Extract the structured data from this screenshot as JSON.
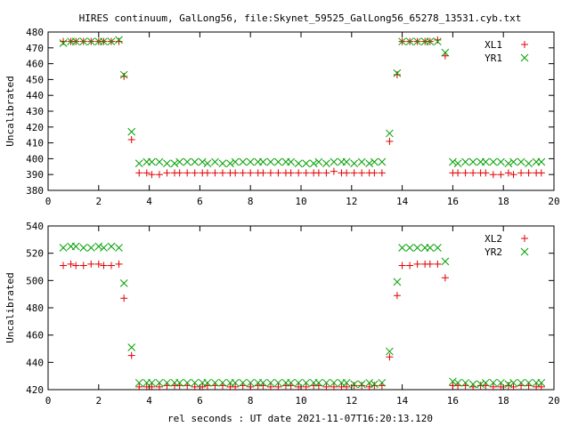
{
  "title": "HIRES continuum, GalLong56, file:Skynet_59525_GalLong56_65278_13531.cyb.txt",
  "xlabel": "rel seconds : UT date 2021-11-07T16:20:13.120",
  "colors": {
    "red": "#e00000",
    "green": "#00a000"
  },
  "chart_data": [
    {
      "type": "scatter",
      "ylabel": "Uncalibrated",
      "xlim": [
        0,
        20
      ],
      "ylim": [
        380,
        480
      ],
      "xticks": [
        0,
        2,
        4,
        6,
        8,
        10,
        12,
        14,
        16,
        18,
        20
      ],
      "yticks": [
        380,
        390,
        400,
        410,
        420,
        430,
        440,
        450,
        460,
        470,
        480
      ],
      "grid": false,
      "legend": "top-right",
      "series": [
        {
          "name": "XL1",
          "marker": "plus",
          "color": "#e00000",
          "x": [
            0.6,
            0.9,
            1.1,
            1.4,
            1.7,
            2.0,
            2.2,
            2.5,
            2.8,
            3.0,
            3.3,
            3.6,
            3.9,
            4.1,
            4.4,
            4.7,
            5.0,
            5.2,
            5.5,
            5.8,
            6.1,
            6.3,
            6.6,
            6.9,
            7.2,
            7.4,
            7.7,
            8.0,
            8.3,
            8.5,
            8.8,
            9.1,
            9.4,
            9.6,
            9.9,
            10.2,
            10.5,
            10.7,
            11.0,
            11.3,
            11.6,
            11.8,
            12.1,
            12.4,
            12.7,
            12.9,
            13.2,
            13.5,
            13.8,
            14.0,
            14.3,
            14.6,
            14.9,
            15.1,
            15.4,
            15.7,
            16.0,
            16.2,
            16.5,
            16.8,
            17.1,
            17.3,
            17.6,
            17.9,
            18.2,
            18.4,
            18.7,
            19.0,
            19.3,
            19.5
          ],
          "y": [
            474,
            474,
            474,
            474,
            474,
            474,
            474,
            474,
            474,
            452,
            412,
            391,
            391,
            390,
            390,
            391,
            391,
            391,
            391,
            391,
            391,
            391,
            391,
            391,
            391,
            391,
            391,
            391,
            391,
            391,
            391,
            391,
            391,
            391,
            391,
            391,
            391,
            391,
            391,
            392,
            391,
            391,
            391,
            391,
            391,
            391,
            391,
            411,
            453,
            474,
            474,
            474,
            474,
            474,
            475,
            465,
            391,
            391,
            391,
            391,
            391,
            391,
            390,
            390,
            391,
            390,
            391,
            391,
            391,
            391
          ]
        },
        {
          "name": "YR1",
          "marker": "cross",
          "color": "#00a000",
          "x": [
            0.6,
            0.9,
            1.1,
            1.4,
            1.7,
            2.0,
            2.2,
            2.5,
            2.8,
            3.0,
            3.3,
            3.6,
            3.9,
            4.1,
            4.4,
            4.7,
            5.0,
            5.2,
            5.5,
            5.8,
            6.1,
            6.3,
            6.6,
            6.9,
            7.2,
            7.4,
            7.7,
            8.0,
            8.3,
            8.5,
            8.8,
            9.1,
            9.4,
            9.6,
            9.9,
            10.2,
            10.5,
            10.7,
            11.0,
            11.3,
            11.6,
            11.8,
            12.1,
            12.4,
            12.7,
            12.9,
            13.2,
            13.5,
            13.8,
            14.0,
            14.3,
            14.6,
            14.9,
            15.1,
            15.4,
            15.7,
            16.0,
            16.2,
            16.5,
            16.8,
            17.1,
            17.3,
            17.6,
            17.9,
            18.2,
            18.4,
            18.7,
            19.0,
            19.3,
            19.5
          ],
          "y": [
            473,
            474,
            474,
            474,
            474,
            474,
            474,
            474,
            475,
            453,
            417,
            397,
            398,
            398,
            398,
            397,
            397,
            398,
            398,
            398,
            398,
            397,
            398,
            397,
            397,
            398,
            398,
            398,
            398,
            398,
            398,
            398,
            398,
            398,
            397,
            397,
            397,
            398,
            397,
            398,
            398,
            398,
            397,
            398,
            397,
            398,
            398,
            416,
            454,
            474,
            474,
            474,
            474,
            474,
            474,
            467,
            398,
            397,
            398,
            398,
            398,
            398,
            398,
            398,
            397,
            398,
            398,
            397,
            398,
            398
          ]
        }
      ]
    },
    {
      "type": "scatter",
      "ylabel": "Uncalibrated",
      "xlim": [
        0,
        20
      ],
      "ylim": [
        420,
        540
      ],
      "xticks": [
        0,
        2,
        4,
        6,
        8,
        10,
        12,
        14,
        16,
        18,
        20
      ],
      "yticks": [
        420,
        440,
        460,
        480,
        500,
        520,
        540
      ],
      "grid": false,
      "legend": "top-right",
      "series": [
        {
          "name": "XL2",
          "marker": "plus",
          "color": "#e00000",
          "x": [
            0.6,
            0.9,
            1.1,
            1.4,
            1.7,
            2.0,
            2.2,
            2.5,
            2.8,
            3.0,
            3.3,
            3.6,
            3.9,
            4.1,
            4.4,
            4.7,
            5.0,
            5.2,
            5.5,
            5.8,
            6.1,
            6.3,
            6.6,
            6.9,
            7.2,
            7.4,
            7.7,
            8.0,
            8.3,
            8.5,
            8.8,
            9.1,
            9.4,
            9.6,
            9.9,
            10.2,
            10.5,
            10.7,
            11.0,
            11.3,
            11.6,
            11.8,
            12.1,
            12.4,
            12.7,
            12.9,
            13.2,
            13.5,
            13.8,
            14.0,
            14.3,
            14.6,
            14.9,
            15.1,
            15.4,
            15.7,
            16.0,
            16.2,
            16.5,
            16.8,
            17.1,
            17.3,
            17.6,
            17.9,
            18.2,
            18.4,
            18.7,
            19.0,
            19.3,
            19.5
          ],
          "y": [
            511,
            512,
            511,
            511,
            512,
            512,
            511,
            511,
            512,
            487,
            445,
            422,
            422,
            422,
            422,
            423,
            423,
            423,
            423,
            422,
            422,
            423,
            423,
            423,
            422,
            422,
            423,
            422,
            423,
            423,
            422,
            422,
            423,
            423,
            422,
            422,
            423,
            423,
            422,
            422,
            422,
            422,
            423,
            423,
            422,
            423,
            423,
            444,
            489,
            511,
            511,
            512,
            512,
            512,
            512,
            502,
            423,
            423,
            423,
            422,
            423,
            423,
            422,
            422,
            423,
            422,
            423,
            423,
            422,
            422
          ]
        },
        {
          "name": "YR2",
          "marker": "cross",
          "color": "#00a000",
          "x": [
            0.6,
            0.9,
            1.1,
            1.4,
            1.7,
            2.0,
            2.2,
            2.5,
            2.8,
            3.0,
            3.3,
            3.6,
            3.9,
            4.1,
            4.4,
            4.7,
            5.0,
            5.2,
            5.5,
            5.8,
            6.1,
            6.3,
            6.6,
            6.9,
            7.2,
            7.4,
            7.7,
            8.0,
            8.3,
            8.5,
            8.8,
            9.1,
            9.4,
            9.6,
            9.9,
            10.2,
            10.5,
            10.7,
            11.0,
            11.3,
            11.6,
            11.8,
            12.1,
            12.4,
            12.7,
            12.9,
            13.2,
            13.5,
            13.8,
            14.0,
            14.3,
            14.6,
            14.9,
            15.1,
            15.4,
            15.7,
            16.0,
            16.2,
            16.5,
            16.8,
            17.1,
            17.3,
            17.6,
            17.9,
            18.2,
            18.4,
            18.7,
            19.0,
            19.3,
            19.5
          ],
          "y": [
            524,
            525,
            525,
            524,
            524,
            525,
            524,
            525,
            524,
            498,
            451,
            425,
            425,
            425,
            425,
            425,
            425,
            425,
            425,
            425,
            425,
            425,
            425,
            425,
            425,
            425,
            425,
            425,
            425,
            425,
            425,
            425,
            425,
            425,
            425,
            425,
            425,
            425,
            425,
            425,
            425,
            425,
            424,
            424,
            425,
            424,
            425,
            448,
            499,
            524,
            524,
            524,
            524,
            524,
            524,
            514,
            426,
            425,
            425,
            424,
            424,
            425,
            425,
            425,
            424,
            425,
            425,
            425,
            425,
            425
          ]
        }
      ]
    }
  ]
}
